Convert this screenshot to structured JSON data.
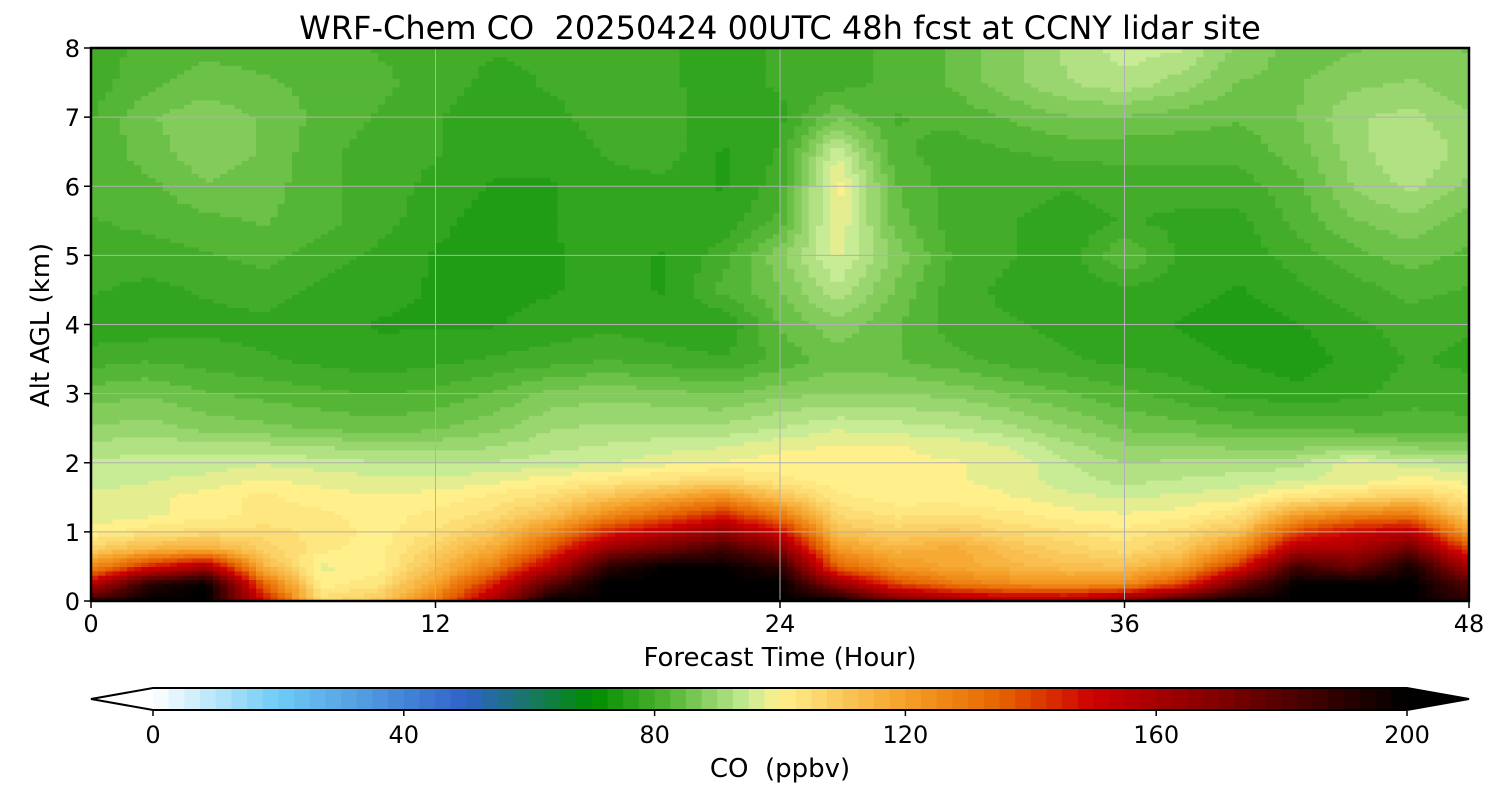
{
  "chart_data": {
    "type": "heatmap",
    "title": "WRF-Chem CO  20250424 00UTC 48h fcst at CCNY lidar site",
    "xlabel": "Forecast Time (Hour)",
    "ylabel": "Alt AGL (km)",
    "xlim": [
      0,
      48
    ],
    "ylim": [
      0,
      8
    ],
    "x_ticks": [
      0,
      12,
      24,
      36,
      48
    ],
    "y_ticks": [
      0,
      1,
      2,
      3,
      4,
      5,
      6,
      7,
      8
    ],
    "grid": true,
    "colorbar": {
      "label": "CO  (ppbv)",
      "range": [
        0,
        200
      ],
      "ticks": [
        0,
        40,
        80,
        120,
        160,
        200
      ],
      "extend": "both",
      "orientation": "horizontal",
      "color_stops": [
        {
          "value": 0,
          "color": "#ffffff"
        },
        {
          "value": 20,
          "color": "#6ecbf5"
        },
        {
          "value": 50,
          "color": "#2f62c8"
        },
        {
          "value": 70,
          "color": "#008c00"
        },
        {
          "value": 82,
          "color": "#50b432"
        },
        {
          "value": 95,
          "color": "#c8ec96"
        },
        {
          "value": 100,
          "color": "#fff08c"
        },
        {
          "value": 120,
          "color": "#f5a028"
        },
        {
          "value": 135,
          "color": "#e66400"
        },
        {
          "value": 150,
          "color": "#cc0000"
        },
        {
          "value": 170,
          "color": "#800000"
        },
        {
          "value": 200,
          "color": "#000000"
        }
      ]
    },
    "x": [
      0,
      2,
      4,
      6,
      8,
      10,
      12,
      14,
      16,
      18,
      20,
      22,
      24,
      26,
      28,
      30,
      32,
      34,
      36,
      38,
      40,
      42,
      44,
      46,
      48
    ],
    "y": [
      0,
      0.25,
      0.5,
      0.75,
      1,
      1.25,
      1.5,
      1.75,
      2,
      2.25,
      2.5,
      3,
      3.5,
      4,
      4.5,
      5,
      5.5,
      6,
      6.5,
      7,
      7.5,
      8
    ],
    "z": [
      [
        190,
        200,
        200,
        150,
        105,
        110,
        130,
        160,
        200,
        200,
        200,
        200,
        200,
        200,
        175,
        165,
        160,
        160,
        170,
        190,
        200,
        200,
        200,
        200,
        190
      ],
      [
        155,
        190,
        200,
        135,
        100,
        103,
        120,
        145,
        180,
        200,
        200,
        200,
        200,
        165,
        140,
        130,
        125,
        123,
        125,
        140,
        175,
        200,
        200,
        200,
        180
      ],
      [
        125,
        145,
        160,
        115,
        98,
        100,
        112,
        128,
        155,
        190,
        200,
        200,
        190,
        135,
        122,
        118,
        115,
        112,
        112,
        120,
        145,
        185,
        175,
        195,
        160
      ],
      [
        108,
        115,
        118,
        108,
        102,
        100,
        108,
        118,
        138,
        165,
        175,
        185,
        170,
        122,
        115,
        118,
        112,
        108,
        105,
        110,
        125,
        160,
        160,
        175,
        140
      ],
      [
        100,
        103,
        105,
        105,
        103,
        100,
        104,
        110,
        125,
        145,
        155,
        165,
        150,
        112,
        108,
        110,
        106,
        104,
        102,
        105,
        112,
        140,
        150,
        155,
        120
      ],
      [
        97,
        98,
        100,
        102,
        102,
        100,
        102,
        105,
        112,
        125,
        135,
        145,
        130,
        106,
        103,
        104,
        102,
        100,
        99,
        100,
        104,
        120,
        128,
        130,
        108
      ],
      [
        97,
        98,
        100,
        102,
        100,
        99,
        100,
        102,
        105,
        112,
        118,
        125,
        112,
        102,
        100,
        100,
        99,
        97,
        96,
        97,
        98,
        103,
        106,
        110,
        102
      ],
      [
        95,
        96,
        97,
        99,
        98,
        97,
        97,
        98,
        100,
        102,
        104,
        106,
        102,
        100,
        99,
        99,
        98,
        95,
        93,
        94,
        95,
        96,
        97,
        100,
        98
      ],
      [
        94,
        95,
        95,
        96,
        95,
        94,
        94,
        94,
        95,
        96,
        98,
        99,
        100,
        100,
        99,
        99,
        98,
        94,
        91,
        92,
        92,
        93,
        98,
        95,
        94
      ],
      [
        92,
        93,
        92,
        92,
        91,
        90,
        90,
        91,
        93,
        94,
        95,
        96,
        98,
        99,
        99,
        98,
        96,
        92,
        89,
        89,
        88,
        88,
        89,
        88,
        87
      ],
      [
        89,
        90,
        88,
        87,
        86,
        85,
        86,
        88,
        91,
        92,
        92,
        92,
        94,
        96,
        95,
        94,
        92,
        89,
        86,
        85,
        84,
        84,
        83,
        83,
        82
      ],
      [
        85,
        86,
        84,
        83,
        82,
        81,
        82,
        84,
        87,
        88,
        87,
        86,
        88,
        89,
        89,
        88,
        86,
        84,
        82,
        80,
        78,
        77,
        78,
        80,
        80
      ],
      [
        80,
        81,
        80,
        79,
        78,
        77,
        78,
        79,
        80,
        81,
        80,
        79,
        82,
        85,
        84,
        82,
        80,
        79,
        78,
        77,
        76,
        75,
        77,
        79,
        78
      ],
      [
        77,
        77,
        78,
        78,
        77,
        76,
        76,
        76,
        77,
        78,
        77,
        76,
        84,
        88,
        84,
        80,
        79,
        78,
        77,
        76,
        75,
        76,
        78,
        80,
        79
      ],
      [
        79,
        78,
        79,
        80,
        78,
        77,
        76,
        76,
        76,
        77,
        76,
        82,
        86,
        93,
        86,
        80,
        78,
        77,
        78,
        77,
        76,
        78,
        80,
        82,
        81
      ],
      [
        80,
        80,
        81,
        82,
        80,
        78,
        76,
        75,
        76,
        77,
        76,
        80,
        88,
        97,
        88,
        81,
        79,
        77,
        84,
        78,
        77,
        80,
        83,
        85,
        83
      ],
      [
        81,
        82,
        83,
        84,
        82,
        80,
        77,
        75,
        76,
        78,
        77,
        77,
        82,
        99,
        85,
        80,
        79,
        77,
        79,
        78,
        78,
        82,
        86,
        88,
        85
      ],
      [
        82,
        83,
        86,
        85,
        82,
        80,
        78,
        76,
        76,
        78,
        78,
        76,
        80,
        100,
        84,
        80,
        80,
        79,
        80,
        80,
        80,
        83,
        89,
        92,
        88
      ],
      [
        82,
        85,
        88,
        86,
        82,
        80,
        79,
        77,
        77,
        79,
        80,
        76,
        79,
        96,
        82,
        80,
        81,
        82,
        82,
        82,
        82,
        85,
        90,
        94,
        90
      ],
      [
        81,
        86,
        88,
        86,
        83,
        81,
        79,
        77,
        78,
        80,
        80,
        77,
        78,
        86,
        81,
        82,
        84,
        86,
        86,
        85,
        84,
        86,
        91,
        92,
        89
      ],
      [
        80,
        83,
        85,
        84,
        83,
        82,
        80,
        78,
        79,
        80,
        79,
        78,
        79,
        80,
        82,
        84,
        88,
        91,
        93,
        90,
        86,
        86,
        88,
        89,
        87
      ],
      [
        80,
        82,
        83,
        83,
        82,
        81,
        80,
        79,
        79,
        80,
        79,
        78,
        79,
        80,
        82,
        84,
        88,
        92,
        95,
        94,
        88,
        85,
        86,
        87,
        86
      ]
    ]
  }
}
